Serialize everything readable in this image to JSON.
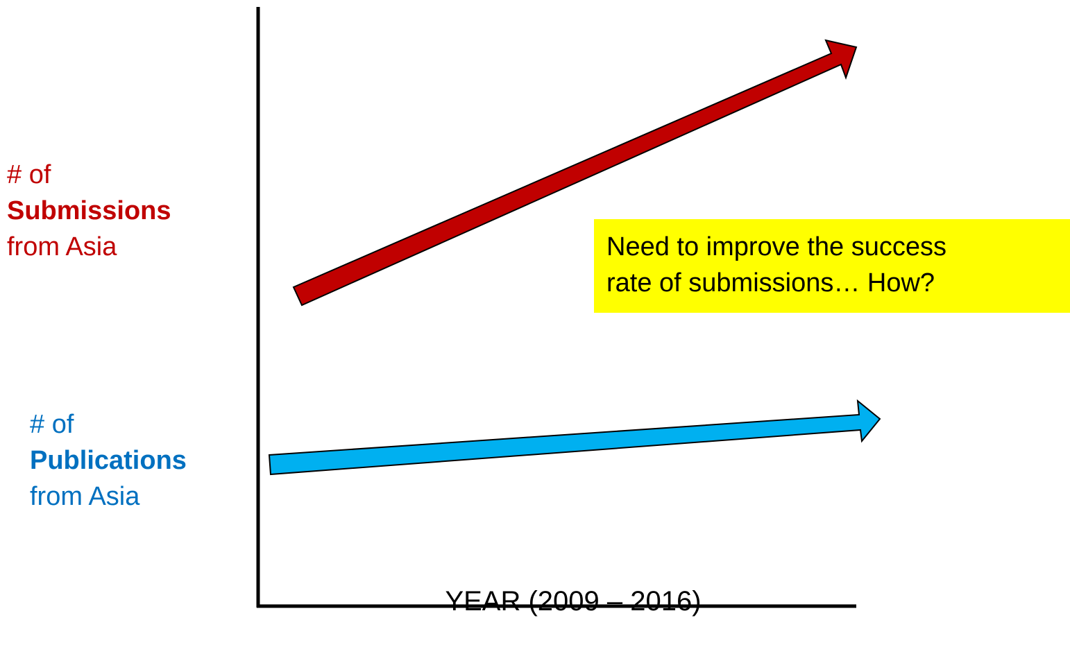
{
  "submissions_label": {
    "prefix": "# of",
    "emphasis": "Submissions",
    "suffix": "from Asia",
    "color": "#c00000",
    "arrow_color": "#c00000"
  },
  "publications_label": {
    "prefix": "# of",
    "emphasis": "Publications",
    "suffix": "from Asia",
    "color": "#0070c0",
    "arrow_color": "#00b0f0"
  },
  "callout": {
    "line1": "Need to improve the success",
    "line2": "rate of submissions… How?",
    "background": "#ffff00"
  },
  "x_axis_label": "YEAR (2009 – 2016)"
}
